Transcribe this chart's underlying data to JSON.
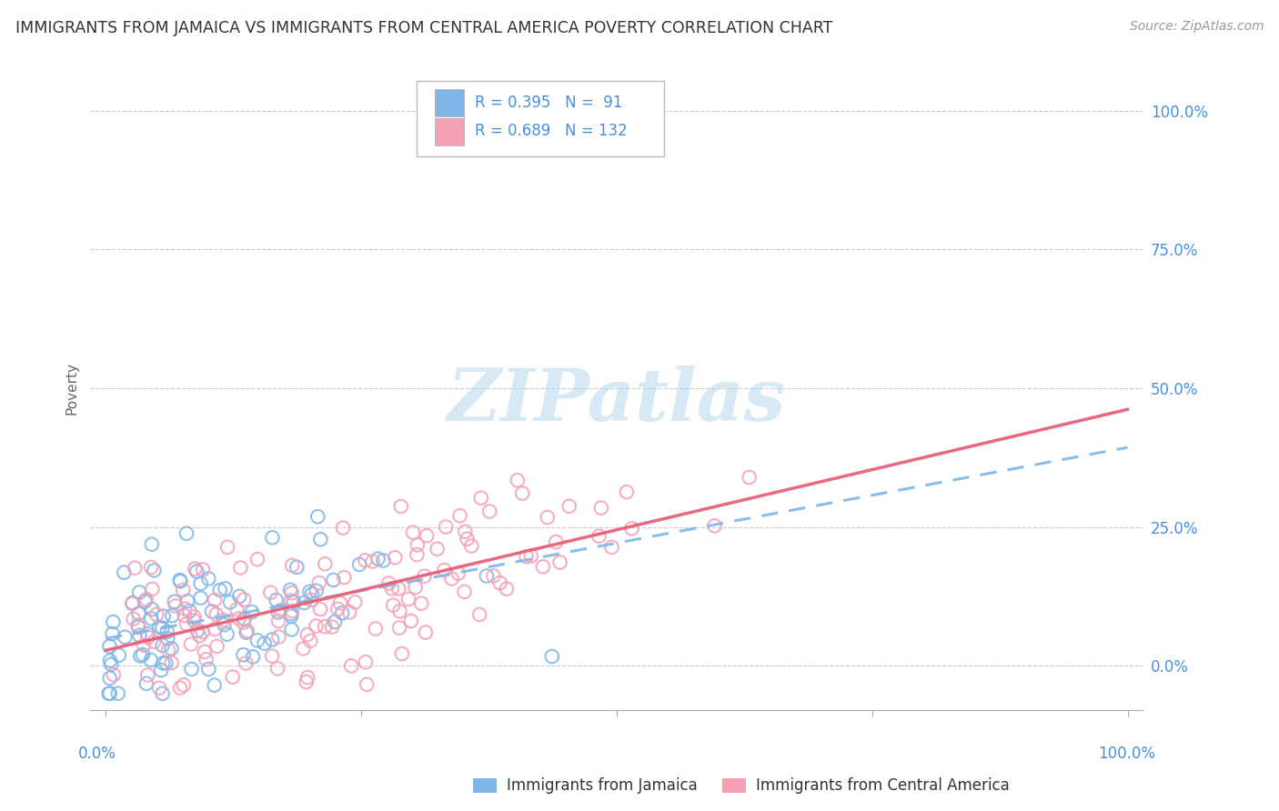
{
  "title": "IMMIGRANTS FROM JAMAICA VS IMMIGRANTS FROM CENTRAL AMERICA POVERTY CORRELATION CHART",
  "source": "Source: ZipAtlas.com",
  "ylabel": "Poverty",
  "series1_label": "Immigrants from Jamaica",
  "series2_label": "Immigrants from Central America",
  "series1_R": 0.395,
  "series1_N": 91,
  "series2_R": 0.689,
  "series2_N": 132,
  "series1_color": "#7eb6e8",
  "series2_color": "#f4a0b5",
  "series1_line_color": "#7eb6e8",
  "series2_line_color": "#e8607a",
  "watermark_text": "ZIPatlas",
  "grid_color": "#cccccc",
  "ytick_labels": [
    "0.0%",
    "25.0%",
    "50.0%",
    "75.0%",
    "100.0%"
  ],
  "ytick_vals": [
    0.0,
    0.25,
    0.5,
    0.75,
    1.0
  ],
  "axis_label_color": "#4a90d9",
  "title_fontsize": 12.5,
  "source_fontsize": 10
}
